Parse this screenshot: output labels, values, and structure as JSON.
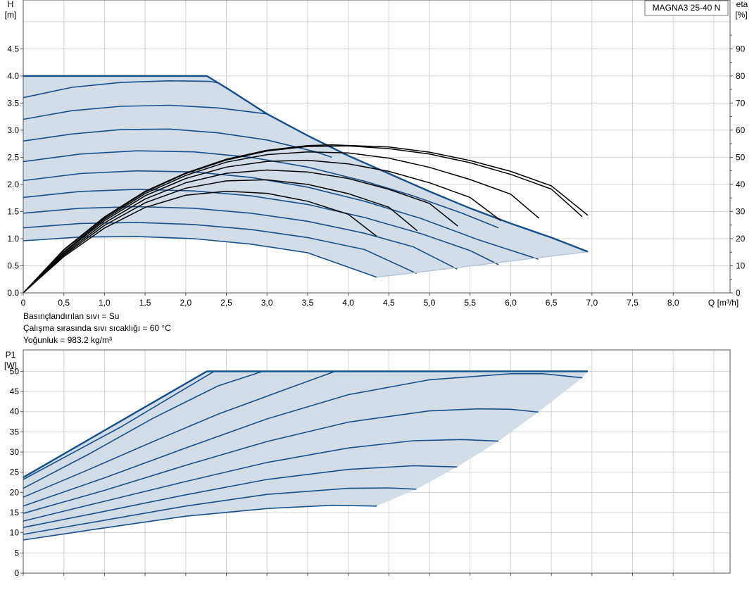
{
  "chart_data": [
    {
      "type": "line",
      "model": "MAGNA3 25-40 N",
      "ylabel": "H",
      "yunit": "[m]",
      "y2label": "eta",
      "y2unit": "[%]",
      "xlabel": "Q [m³/h]",
      "xlim": [
        0,
        8.7
      ],
      "ylim": [
        0,
        5.4
      ],
      "y2lim": [
        0,
        108
      ],
      "xticks": [
        "0",
        "0,5",
        "1,0",
        "1,5",
        "2,0",
        "2,5",
        "3,0",
        "3,5",
        "4,0",
        "4,5",
        "5,0",
        "5,5",
        "6,0",
        "6,5",
        "7,0",
        "7,5",
        "8,0"
      ],
      "yticks": [
        "0.0",
        "0.5",
        "1.0",
        "1.5",
        "2.0",
        "2.5",
        "3.0",
        "3.5",
        "4.0",
        "4.5"
      ],
      "y2ticks": [
        "0",
        "10",
        "20",
        "30",
        "40",
        "50",
        "60",
        "70",
        "80",
        "90"
      ],
      "grid": true,
      "max_curve": [
        [
          0,
          4.0
        ],
        [
          2.26,
          4.0
        ],
        [
          2.5,
          3.78
        ],
        [
          3.0,
          3.3
        ],
        [
          3.5,
          2.9
        ],
        [
          4.0,
          2.53
        ],
        [
          4.5,
          2.2
        ],
        [
          5.0,
          1.87
        ],
        [
          5.5,
          1.56
        ],
        [
          6.0,
          1.28
        ],
        [
          6.5,
          1.02
        ],
        [
          6.95,
          0.76
        ]
      ],
      "min_boundary": [
        [
          4.35,
          0.29
        ],
        [
          6.95,
          0.76
        ]
      ],
      "speed_curves": [
        [
          [
            0,
            3.6
          ],
          [
            0.6,
            3.79
          ],
          [
            1.2,
            3.88
          ],
          [
            1.8,
            3.91
          ],
          [
            2.3,
            3.9
          ],
          [
            2.4,
            3.87
          ]
        ],
        [
          [
            0,
            3.2
          ],
          [
            0.6,
            3.36
          ],
          [
            1.2,
            3.44
          ],
          [
            1.8,
            3.46
          ],
          [
            2.4,
            3.41
          ],
          [
            3.0,
            3.3
          ]
        ],
        [
          [
            0,
            2.8
          ],
          [
            0.6,
            2.93
          ],
          [
            1.2,
            3.01
          ],
          [
            1.8,
            3.02
          ],
          [
            2.4,
            2.95
          ],
          [
            3.0,
            2.82
          ],
          [
            3.6,
            2.6
          ],
          [
            3.8,
            2.5
          ]
        ],
        [
          [
            0,
            2.42
          ],
          [
            0.7,
            2.56
          ],
          [
            1.4,
            2.62
          ],
          [
            2.1,
            2.6
          ],
          [
            2.8,
            2.5
          ],
          [
            3.5,
            2.32
          ],
          [
            4.2,
            2.06
          ],
          [
            4.8,
            1.79
          ],
          [
            5.4,
            1.47
          ],
          [
            5.85,
            1.2
          ]
        ],
        [
          [
            0,
            2.07
          ],
          [
            0.7,
            2.2
          ],
          [
            1.4,
            2.25
          ],
          [
            2.1,
            2.23
          ],
          [
            2.8,
            2.13
          ],
          [
            3.5,
            1.95
          ],
          [
            4.2,
            1.69
          ],
          [
            4.9,
            1.37
          ],
          [
            5.6,
            0.98
          ],
          [
            6.34,
            0.62
          ]
        ],
        [
          [
            0,
            1.76
          ],
          [
            0.7,
            1.87
          ],
          [
            1.4,
            1.91
          ],
          [
            2.1,
            1.88
          ],
          [
            2.8,
            1.79
          ],
          [
            3.5,
            1.63
          ],
          [
            4.2,
            1.39
          ],
          [
            4.9,
            1.09
          ],
          [
            5.5,
            0.78
          ],
          [
            5.85,
            0.52
          ]
        ],
        [
          [
            0,
            1.47
          ],
          [
            0.7,
            1.56
          ],
          [
            1.4,
            1.59
          ],
          [
            2.1,
            1.56
          ],
          [
            2.8,
            1.47
          ],
          [
            3.5,
            1.32
          ],
          [
            4.2,
            1.1
          ],
          [
            4.8,
            0.85
          ],
          [
            5.34,
            0.44
          ]
        ],
        [
          [
            0,
            1.2
          ],
          [
            0.7,
            1.28
          ],
          [
            1.4,
            1.3
          ],
          [
            2.1,
            1.26
          ],
          [
            2.8,
            1.17
          ],
          [
            3.5,
            1.02
          ],
          [
            4.2,
            0.8
          ],
          [
            4.84,
            0.36
          ]
        ],
        [
          [
            0,
            0.96
          ],
          [
            0.7,
            1.03
          ],
          [
            1.4,
            1.04
          ],
          [
            2.1,
            1.0
          ],
          [
            2.8,
            0.9
          ],
          [
            3.5,
            0.74
          ],
          [
            4.35,
            0.29
          ]
        ]
      ],
      "eta_curves": [
        [
          [
            0,
            0
          ],
          [
            0.5,
            16
          ],
          [
            1.0,
            28
          ],
          [
            1.5,
            37.5
          ],
          [
            2.0,
            44.2
          ],
          [
            2.5,
            49.3
          ],
          [
            3.0,
            52.6
          ],
          [
            3.5,
            54.3
          ],
          [
            3.8,
            54.6
          ],
          [
            4.5,
            53.8
          ],
          [
            5.0,
            51.9
          ],
          [
            5.5,
            48.8
          ],
          [
            6.0,
            44.8
          ],
          [
            6.5,
            39.5
          ],
          [
            6.95,
            28.6
          ]
        ],
        [
          [
            0,
            0
          ],
          [
            0.5,
            15.8
          ],
          [
            1.0,
            27.7
          ],
          [
            1.5,
            37.2
          ],
          [
            2.0,
            44
          ],
          [
            2.5,
            49
          ],
          [
            3.0,
            52.3
          ],
          [
            3.5,
            54
          ],
          [
            4.0,
            54.2
          ],
          [
            4.5,
            53.2
          ],
          [
            5.0,
            51.2
          ],
          [
            5.5,
            48
          ],
          [
            6.0,
            43.7
          ],
          [
            6.5,
            38.3
          ],
          [
            6.88,
            28.1
          ]
        ],
        [
          [
            0,
            0
          ],
          [
            0.5,
            15.2
          ],
          [
            1.0,
            27.2
          ],
          [
            1.5,
            36.6
          ],
          [
            2.0,
            43.3
          ],
          [
            2.5,
            48.2
          ],
          [
            3.0,
            51
          ],
          [
            3.5,
            52
          ],
          [
            4.0,
            51.6
          ],
          [
            4.5,
            49.7
          ],
          [
            5.0,
            46.3
          ],
          [
            5.5,
            41.8
          ],
          [
            6.0,
            36.4
          ],
          [
            6.35,
            27.5
          ]
        ],
        [
          [
            0,
            0
          ],
          [
            0.5,
            14.8
          ],
          [
            1.0,
            26.6
          ],
          [
            1.5,
            35.8
          ],
          [
            2.0,
            42.2
          ],
          [
            2.5,
            46.4
          ],
          [
            3.0,
            48.5
          ],
          [
            3.5,
            48.9
          ],
          [
            4.0,
            47.6
          ],
          [
            4.5,
            44.8
          ],
          [
            5.0,
            40.6
          ],
          [
            5.5,
            35.2
          ],
          [
            5.88,
            26.6
          ]
        ],
        [
          [
            0,
            0
          ],
          [
            0.5,
            14.3
          ],
          [
            1.0,
            25.8
          ],
          [
            1.5,
            34.6
          ],
          [
            2.0,
            40.6
          ],
          [
            2.5,
            44.1
          ],
          [
            3.0,
            45.3
          ],
          [
            3.5,
            44.6
          ],
          [
            4.0,
            42.2
          ],
          [
            4.5,
            38.2
          ],
          [
            5.0,
            33
          ],
          [
            5.35,
            24.6
          ]
        ],
        [
          [
            0,
            0
          ],
          [
            0.5,
            13.9
          ],
          [
            1.0,
            24.9
          ],
          [
            1.5,
            33.2
          ],
          [
            2.0,
            38.6
          ],
          [
            2.5,
            41.3
          ],
          [
            3.0,
            41.7
          ],
          [
            3.5,
            40
          ],
          [
            4.0,
            36.6
          ],
          [
            4.5,
            31.6
          ],
          [
            4.85,
            22.9
          ]
        ],
        [
          [
            0,
            0
          ],
          [
            0.5,
            13.4
          ],
          [
            1.0,
            23.9
          ],
          [
            1.5,
            31.5
          ],
          [
            2.0,
            36
          ],
          [
            2.5,
            37.5
          ],
          [
            3.0,
            36.7
          ],
          [
            3.5,
            33.8
          ],
          [
            4.0,
            29
          ],
          [
            4.35,
            20.9
          ]
        ]
      ]
    },
    {
      "type": "line",
      "ylabel": "P1",
      "yunit": "[W]",
      "xlim": [
        0,
        8.7
      ],
      "ylim": [
        0,
        55.3
      ],
      "yticks": [
        "0",
        "5",
        "10",
        "15",
        "20",
        "25",
        "30",
        "35",
        "40",
        "45",
        "50"
      ],
      "grid": true,
      "max_curve": [
        [
          0,
          23.7
        ],
        [
          2.26,
          50
        ],
        [
          6.95,
          50
        ]
      ],
      "min_boundary": [
        [
          4.35,
          16.6
        ],
        [
          4.84,
          20.8
        ],
        [
          5.34,
          26.3
        ],
        [
          5.85,
          32.7
        ],
        [
          6.34,
          39.9
        ],
        [
          6.88,
          48.4
        ]
      ],
      "power_curves": [
        [
          [
            0,
            23.2
          ],
          [
            1.2,
            36.2
          ],
          [
            2.35,
            50
          ]
        ],
        [
          [
            0,
            21
          ],
          [
            0.8,
            29.4
          ],
          [
            1.6,
            38.4
          ],
          [
            2.4,
            46.4
          ],
          [
            2.95,
            50
          ]
        ],
        [
          [
            0,
            18.8
          ],
          [
            0.8,
            25.6
          ],
          [
            1.6,
            32.6
          ],
          [
            2.4,
            39.4
          ],
          [
            3.2,
            45.3
          ],
          [
            3.84,
            50
          ]
        ],
        [
          [
            0,
            16.6
          ],
          [
            1.0,
            23.6
          ],
          [
            2.0,
            31
          ],
          [
            3.0,
            38.2
          ],
          [
            4.0,
            44.2
          ],
          [
            5.0,
            47.9
          ],
          [
            6.0,
            49.4
          ],
          [
            6.4,
            49.4
          ],
          [
            6.88,
            48.4
          ]
        ],
        [
          [
            0,
            14.8
          ],
          [
            1.0,
            20.5
          ],
          [
            2.0,
            26.7
          ],
          [
            3.0,
            32.6
          ],
          [
            4.0,
            37.4
          ],
          [
            5.0,
            40.2
          ],
          [
            5.6,
            40.7
          ],
          [
            6.0,
            40.6
          ],
          [
            6.34,
            39.9
          ]
        ],
        [
          [
            0,
            12.9
          ],
          [
            1.0,
            17.8
          ],
          [
            2.0,
            22.7
          ],
          [
            3.0,
            27.4
          ],
          [
            4.0,
            31
          ],
          [
            4.8,
            32.8
          ],
          [
            5.4,
            33.1
          ],
          [
            5.85,
            32.7
          ]
        ],
        [
          [
            0,
            11.3
          ],
          [
            1.0,
            15.3
          ],
          [
            2.0,
            19.4
          ],
          [
            3.0,
            23.2
          ],
          [
            4.0,
            25.7
          ],
          [
            4.8,
            26.6
          ],
          [
            5.34,
            26.3
          ]
        ],
        [
          [
            0,
            9.6
          ],
          [
            1.0,
            13.1
          ],
          [
            2.0,
            16.6
          ],
          [
            3.0,
            19.5
          ],
          [
            4.0,
            21
          ],
          [
            4.5,
            21.1
          ],
          [
            4.84,
            20.8
          ]
        ],
        [
          [
            0,
            8.2
          ],
          [
            1.0,
            11.2
          ],
          [
            2.0,
            14.1
          ],
          [
            3.0,
            16
          ],
          [
            3.8,
            16.8
          ],
          [
            4.35,
            16.6
          ]
        ]
      ]
    }
  ],
  "info": {
    "line1": "Basınçlandırılan sıvı = Su",
    "line2": "Çalışma sırasında sıvı sıcaklığı = 60 °C",
    "line3": "Yoğunluk = 983.2 kg/m³"
  }
}
